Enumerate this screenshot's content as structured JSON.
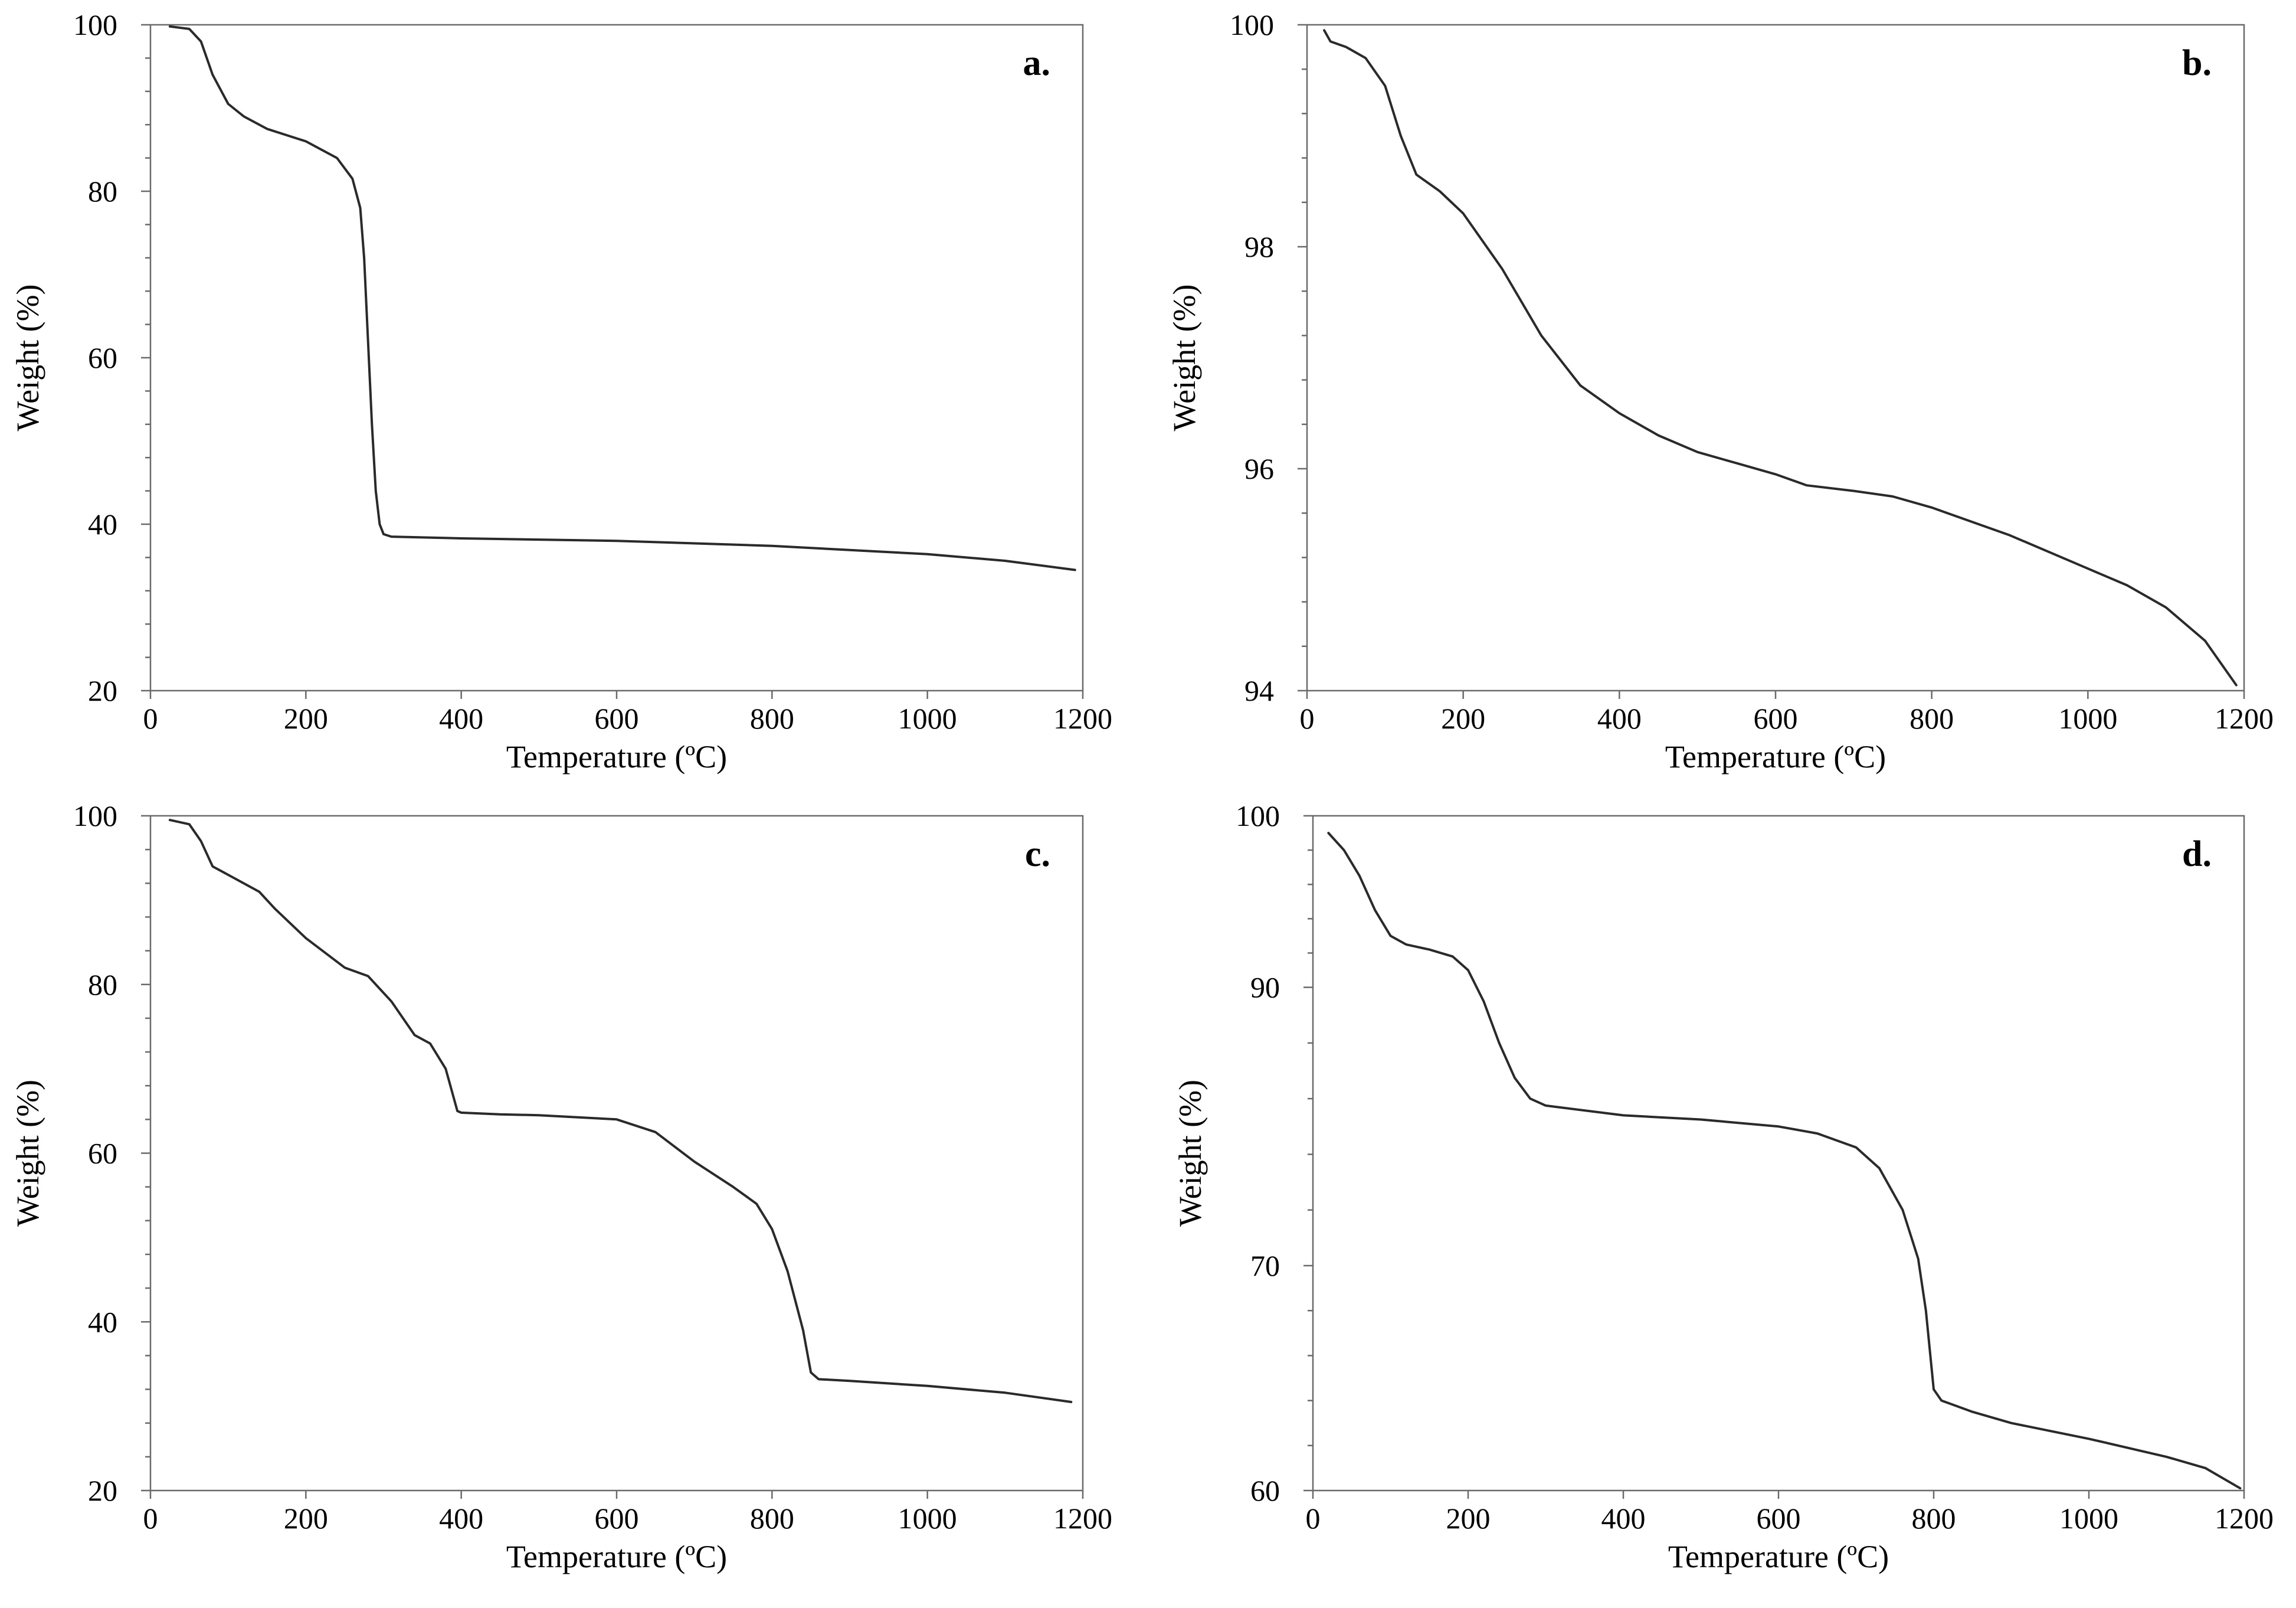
{
  "chart_data": [
    {
      "type": "line",
      "panel_label": "a.",
      "xlabel": "Temperature (ºC)",
      "ylabel": "Weight (%)",
      "xlim": [
        0,
        1200
      ],
      "ylim": [
        20,
        100
      ],
      "xticks": [
        0,
        200,
        400,
        600,
        800,
        1000,
        1200
      ],
      "yticks": [
        20,
        40,
        60,
        80,
        100
      ],
      "x": [
        25,
        50,
        65,
        80,
        100,
        120,
        150,
        200,
        240,
        260,
        270,
        275,
        280,
        285,
        290,
        295,
        300,
        310,
        400,
        600,
        800,
        1000,
        1100,
        1190
      ],
      "y": [
        99.8,
        99.5,
        98,
        94,
        90.5,
        89,
        87.5,
        86,
        84,
        81.5,
        78,
        72,
        62,
        52,
        44,
        40,
        38.8,
        38.5,
        38.3,
        38,
        37.4,
        36.4,
        35.6,
        34.5
      ]
    },
    {
      "type": "line",
      "panel_label": "b.",
      "xlabel": "Temperature (ºC)",
      "ylabel": "Weight (%)",
      "xlim": [
        0,
        1200
      ],
      "ylim": [
        94,
        100
      ],
      "xticks": [
        0,
        200,
        400,
        600,
        800,
        1000,
        1200
      ],
      "yticks": [
        94,
        96,
        98,
        100
      ],
      "x": [
        22,
        30,
        50,
        75,
        100,
        120,
        140,
        170,
        200,
        250,
        300,
        350,
        400,
        450,
        500,
        550,
        600,
        640,
        700,
        750,
        800,
        900,
        1000,
        1050,
        1100,
        1150,
        1190
      ],
      "y": [
        99.95,
        99.85,
        99.8,
        99.7,
        99.45,
        99.0,
        98.65,
        98.5,
        98.3,
        97.8,
        97.2,
        96.75,
        96.5,
        96.3,
        96.15,
        96.05,
        95.95,
        95.85,
        95.8,
        95.75,
        95.65,
        95.4,
        95.1,
        94.95,
        94.75,
        94.45,
        94.05
      ]
    },
    {
      "type": "line",
      "panel_label": "c.",
      "xlabel": "Temperature (ºC)",
      "ylabel": "Weight (%)",
      "xlim": [
        0,
        1200
      ],
      "ylim": [
        20,
        100
      ],
      "xticks": [
        0,
        200,
        400,
        600,
        800,
        1000,
        1200
      ],
      "yticks": [
        20,
        40,
        60,
        80,
        100
      ],
      "x": [
        25,
        50,
        65,
        80,
        100,
        140,
        160,
        200,
        250,
        280,
        310,
        340,
        360,
        380,
        395,
        400,
        450,
        500,
        600,
        650,
        700,
        750,
        780,
        800,
        820,
        840,
        850,
        860,
        900,
        1000,
        1100,
        1185
      ],
      "y": [
        99.5,
        99,
        97,
        94,
        93,
        91,
        89,
        85.5,
        82,
        81,
        78,
        74,
        73,
        70,
        65,
        64.8,
        64.6,
        64.5,
        64,
        62.5,
        59,
        56,
        54,
        51,
        46,
        39,
        34,
        33.2,
        33,
        32.4,
        31.6,
        30.5
      ]
    },
    {
      "type": "line",
      "panel_label": "d.",
      "xlabel": "Temperature (ºC)",
      "ylabel": "Weight (%)",
      "xlim": [
        0,
        1200
      ],
      "ylim": [
        60,
        100
      ],
      "xticks": [
        0,
        200,
        400,
        600,
        800,
        1000,
        1200
      ],
      "yticks": [
        60,
        70,
        90,
        100
      ],
      "ytick_labels": [
        "60",
        "70",
        "90",
        "100"
      ],
      "x": [
        20,
        40,
        60,
        80,
        100,
        120,
        150,
        180,
        200,
        220,
        240,
        260,
        280,
        300,
        400,
        500,
        600,
        650,
        700,
        730,
        760,
        780,
        790,
        800,
        810,
        850,
        900,
        1000,
        1100,
        1150,
        1195
      ],
      "y": [
        99.0,
        98,
        96.5,
        94.5,
        93,
        92.5,
        92.2,
        91.8,
        91,
        89,
        86,
        83.5,
        82,
        81.5,
        80.8,
        80.5,
        80,
        79.5,
        78.5,
        77,
        74,
        70.5,
        68,
        64.5,
        64,
        63.5,
        63,
        62.3,
        61.5,
        61,
        60.1
      ]
    }
  ]
}
